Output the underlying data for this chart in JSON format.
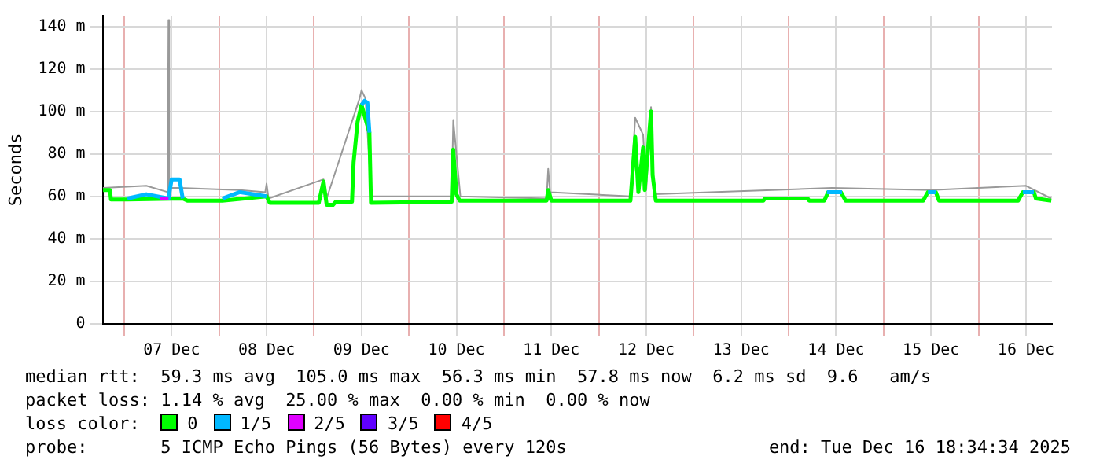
{
  "chart_data": {
    "type": "line",
    "ylabel": "Seconds",
    "legend_title": "loss color:",
    "legend": "bottom",
    "grid": true,
    "marker": "none",
    "line_style": "solid",
    "xlim": [
      "2025-12-06T18:34",
      "2025-12-16T18:34"
    ],
    "xticks": [
      {
        "value": "2025-12-07T00:00",
        "label": null
      },
      {
        "value": "2025-12-07T12:00",
        "label": "07 Dec"
      },
      {
        "value": "2025-12-08T00:00",
        "label": null
      },
      {
        "value": "2025-12-08T12:00",
        "label": "08 Dec"
      },
      {
        "value": "2025-12-09T00:00",
        "label": null
      },
      {
        "value": "2025-12-09T12:00",
        "label": "09 Dec"
      },
      {
        "value": "2025-12-10T00:00",
        "label": null
      },
      {
        "value": "2025-12-10T12:00",
        "label": "10 Dec"
      },
      {
        "value": "2025-12-11T00:00",
        "label": null
      },
      {
        "value": "2025-12-11T12:00",
        "label": "11 Dec"
      },
      {
        "value": "2025-12-12T00:00",
        "label": null
      },
      {
        "value": "2025-12-12T12:00",
        "label": "12 Dec"
      },
      {
        "value": "2025-12-13T00:00",
        "label": null
      },
      {
        "value": "2025-12-13T12:00",
        "label": "13 Dec"
      },
      {
        "value": "2025-12-14T00:00",
        "label": null
      },
      {
        "value": "2025-12-14T12:00",
        "label": "14 Dec"
      },
      {
        "value": "2025-12-15T00:00",
        "label": null
      },
      {
        "value": "2025-12-15T12:00",
        "label": "15 Dec"
      },
      {
        "value": "2025-12-16T00:00",
        "label": null
      },
      {
        "value": "2025-12-16T12:00",
        "label": "16 Dec"
      }
    ],
    "ylim": [
      0,
      145
    ],
    "yticks": [
      0,
      {
        "value": 20,
        "label": "20 m"
      },
      {
        "value": 40,
        "label": "40 m"
      },
      {
        "value": 60,
        "label": "60 m"
      },
      {
        "value": 80,
        "label": "80 m"
      },
      {
        "value": 100,
        "label": "100 m"
      },
      {
        "value": 120,
        "label": "120 m"
      },
      {
        "value": 140,
        "label": "140 m"
      }
    ],
    "series": [
      {
        "color": "#999999",
        "x": [
          "2025-12-06T18:40",
          "2025-12-07T05:36",
          "2025-12-07T11:00",
          "2025-12-07T11:12",
          "2025-12-07T11:24",
          "2025-12-07T14:00",
          "2025-12-08T05:12",
          "2025-12-08T11:40",
          "2025-12-08T12:00",
          "2025-12-08T12:30",
          "2025-12-09T02:24",
          "2025-12-09T03:00",
          "2025-12-09T11:30",
          "2025-12-09T12:00",
          "2025-12-09T13:00",
          "2025-12-09T14:30",
          "2025-12-10T10:48",
          "2025-12-10T11:12",
          "2025-12-10T13:00",
          "2025-12-11T10:48",
          "2025-12-11T11:12",
          "2025-12-11T11:40",
          "2025-12-12T08:00",
          "2025-12-12T09:12",
          "2025-12-12T11:12",
          "2025-12-12T12:00",
          "2025-12-12T13:12",
          "2025-12-12T14:00",
          "2025-12-14T11:00",
          "2025-12-15T12:00",
          "2025-12-16T12:00",
          "2025-12-16T18:24"
        ],
        "values": [
          64,
          65,
          62,
          143,
          64,
          64,
          63,
          62,
          66,
          59,
          68,
          58,
          106,
          110,
          106,
          60,
          60,
          96,
          60,
          59,
          73,
          62,
          60,
          97,
          89,
          63,
          102,
          61,
          64,
          63,
          65,
          59
        ]
      },
      {
        "name": "0",
        "color": "#00ff00",
        "x": [
          "2025-12-06T18:40",
          "2025-12-06T20:24",
          "2025-12-06T20:40",
          "2025-12-07T00:48",
          "2025-12-07T14:48",
          "2025-12-07T16:00",
          "2025-12-08T00:48",
          "2025-12-08T12:00",
          "2025-12-08T12:48",
          "2025-12-09T01:12",
          "2025-12-09T02:24",
          "2025-12-09T03:12",
          "2025-12-09T04:48",
          "2025-12-09T05:30",
          "2025-12-09T09:36",
          "2025-12-09T10:00",
          "2025-12-09T11:00",
          "2025-12-09T12:00",
          "2025-12-09T14:00",
          "2025-12-09T14:24",
          "2025-12-10T10:48",
          "2025-12-10T11:12",
          "2025-12-10T12:00",
          "2025-12-10T12:48",
          "2025-12-11T10:48",
          "2025-12-11T11:12",
          "2025-12-11T12:00",
          "2025-12-12T08:00",
          "2025-12-12T09:12",
          "2025-12-12T10:00",
          "2025-12-12T11:12",
          "2025-12-12T11:36",
          "2025-12-12T13:12",
          "2025-12-12T13:36",
          "2025-12-12T14:24",
          "2025-12-13T17:36",
          "2025-12-13T18:00",
          "2025-12-14T04:48",
          "2025-12-14T05:10",
          "2025-12-14T09:00",
          "2025-12-14T10:00",
          "2025-12-14T13:12",
          "2025-12-14T14:24",
          "2025-12-15T10:00",
          "2025-12-15T11:12",
          "2025-12-15T13:12",
          "2025-12-15T14:00",
          "2025-12-16T10:00",
          "2025-12-16T11:12",
          "2025-12-16T14:00",
          "2025-12-16T14:30",
          "2025-12-16T18:24"
        ],
        "values": [
          63,
          63,
          58.5,
          58.5,
          59,
          58,
          58,
          60,
          57,
          57,
          67,
          56,
          56,
          57.5,
          57.5,
          76,
          95,
          103,
          90,
          57,
          57.5,
          82,
          61,
          58,
          58,
          63,
          58,
          58,
          88,
          62,
          83,
          63,
          100,
          70,
          58,
          58,
          59,
          59,
          58,
          58,
          62,
          62,
          58,
          58,
          62,
          62,
          58,
          58,
          62,
          62,
          59,
          58
        ]
      },
      {
        "name": "1/5",
        "color": "#00b8ff",
        "x": [
          "2025-12-07T00:48",
          "2025-12-07T05:36",
          "2025-12-07T11:12",
          "2025-12-07T12:00",
          "2025-12-07T14:00",
          "2025-12-07T14:48",
          "2025-12-07T20:00",
          "2025-12-08T00:48",
          "2025-12-08T05:12",
          "2025-12-08T12:00",
          "2025-12-09T00:00",
          "2025-12-09T12:00",
          "2025-12-09T12:48",
          "2025-12-09T13:30",
          "2025-12-09T14:00",
          "2025-12-12T00:00",
          "2025-12-14T09:40",
          "2025-12-14T13:30",
          "2025-12-15T00:00",
          "2025-12-15T11:12",
          "2025-12-15T13:12",
          "2025-12-16T00:00",
          "2025-12-16T11:12",
          "2025-12-16T14:00"
        ],
        "values": [
          59,
          61,
          59,
          68,
          68,
          59,
          null,
          59,
          62,
          60,
          null,
          103,
          105,
          104,
          90,
          null,
          62,
          62,
          null,
          62,
          62,
          null,
          62,
          62
        ]
      },
      {
        "name": "2/5",
        "color": "#e000ff",
        "x": [
          "2025-12-07T09:00",
          "2025-12-07T11:12"
        ],
        "values": [
          59,
          59
        ]
      },
      {
        "name": "3/5",
        "color": "#6000ff"
      },
      {
        "name": "4/5",
        "color": "#ff0000"
      }
    ],
    "annotations": [
      "median rtt:  59.3 ms avg  105.0 ms max  56.3 ms min  57.8 ms now  6.2 ms sd  9.6   am/s",
      "packet loss: 1.14 % avg  25.00 % max  0.00 % min  0.00 % now",
      "probe:       5 ICMP Echo Pings (56 Bytes) every 120s",
      "end: Tue Dec 16 18:34:34 2025"
    ]
  }
}
